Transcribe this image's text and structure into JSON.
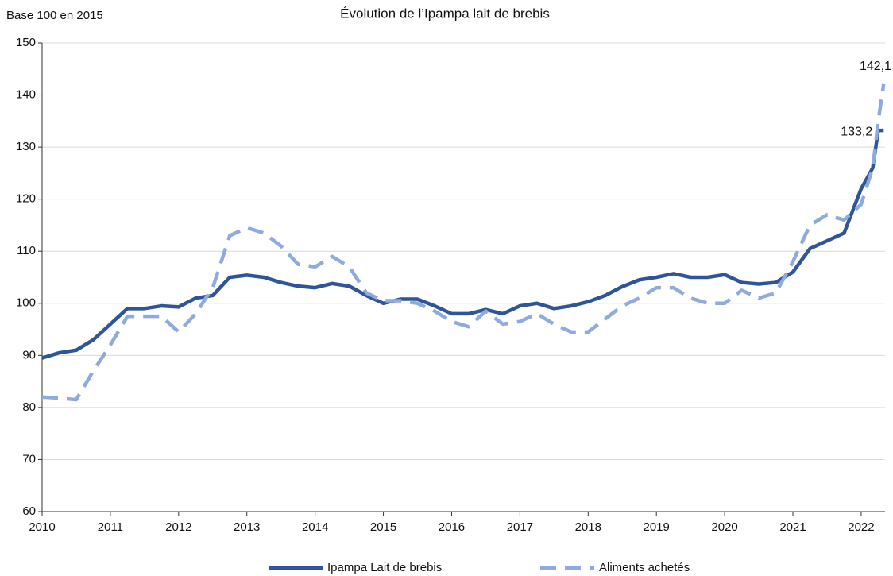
{
  "chart_data": {
    "type": "line",
    "title": "Évolution de l’Ipampa lait de brebis",
    "y_label": "Base 100 en 2015",
    "x": [
      2010,
      2010.25,
      2010.5,
      2010.75,
      2011,
      2011.25,
      2011.5,
      2011.75,
      2012,
      2012.25,
      2012.5,
      2012.75,
      2013,
      2013.25,
      2013.5,
      2013.75,
      2014,
      2014.25,
      2014.5,
      2014.75,
      2015,
      2015.25,
      2015.5,
      2015.75,
      2016,
      2016.25,
      2016.5,
      2016.75,
      2017,
      2017.25,
      2017.5,
      2017.75,
      2018,
      2018.25,
      2018.5,
      2018.75,
      2019,
      2019.25,
      2019.5,
      2019.75,
      2020,
      2020.25,
      2020.5,
      2020.75,
      2021,
      2021.25,
      2021.5,
      2021.75,
      2022,
      2022.17,
      2022.25,
      2022.33
    ],
    "series": [
      {
        "name": "Ipampa Lait de brebis",
        "color": "#2e5597",
        "dash": false,
        "values": [
          89.5,
          90.5,
          91,
          93,
          96,
          99,
          99,
          99.5,
          99.3,
          101,
          101.5,
          105,
          105.4,
          105,
          104,
          103.3,
          103,
          103.8,
          103.3,
          101.5,
          100,
          100.8,
          100.8,
          99.5,
          98,
          98,
          98.8,
          98,
          99.5,
          100,
          99,
          99.5,
          100.3,
          101.5,
          103.2,
          104.5,
          105,
          105.7,
          105,
          105,
          105.5,
          104,
          103.7,
          104,
          106,
          110.5,
          112,
          113.5,
          122,
          126,
          133.2,
          133.2
        ],
        "value_labels": [
          null,
          null,
          null,
          null,
          null,
          null,
          null,
          null,
          null,
          null,
          null,
          null,
          null,
          null,
          null,
          null,
          null,
          null,
          null,
          null,
          null,
          null,
          null,
          null,
          null,
          null,
          null,
          null,
          null,
          null,
          null,
          null,
          null,
          null,
          null,
          null,
          null,
          null,
          null,
          null,
          null,
          null,
          null,
          null,
          null,
          null,
          null,
          null,
          null,
          null,
          null,
          "133,2"
        ]
      },
      {
        "name": "Aliments achetés",
        "color": "#8faadc",
        "dash": true,
        "values": [
          82,
          81.8,
          81.5,
          87,
          92,
          97.5,
          97.5,
          97.5,
          94.5,
          98,
          103,
          113,
          114.5,
          113.5,
          111,
          107.5,
          107,
          109,
          107,
          102,
          100.5,
          100.5,
          100,
          98.5,
          96.5,
          95.5,
          98.5,
          96,
          96.5,
          98,
          96,
          94.5,
          94.5,
          97,
          99.5,
          101,
          103,
          103,
          101,
          100,
          100,
          102.5,
          101,
          102,
          108,
          115,
          117,
          116,
          119,
          126,
          135,
          142.1
        ],
        "value_labels": [
          null,
          null,
          null,
          null,
          null,
          null,
          null,
          null,
          null,
          null,
          null,
          null,
          null,
          null,
          null,
          null,
          null,
          null,
          null,
          null,
          null,
          null,
          null,
          null,
          null,
          null,
          null,
          null,
          null,
          null,
          null,
          null,
          null,
          null,
          null,
          null,
          null,
          null,
          null,
          null,
          null,
          null,
          null,
          null,
          null,
          null,
          null,
          null,
          null,
          null,
          null,
          "142,1"
        ]
      }
    ],
    "xlim": [
      2010,
      2022.35
    ],
    "xticks": [
      2010,
      2011,
      2012,
      2013,
      2014,
      2015,
      2016,
      2017,
      2018,
      2019,
      2020,
      2021,
      2022
    ],
    "ylim": [
      60,
      150
    ],
    "yticks": [
      60,
      70,
      80,
      90,
      100,
      110,
      120,
      130,
      140,
      150
    ],
    "grid": true,
    "legend": "bottom"
  }
}
